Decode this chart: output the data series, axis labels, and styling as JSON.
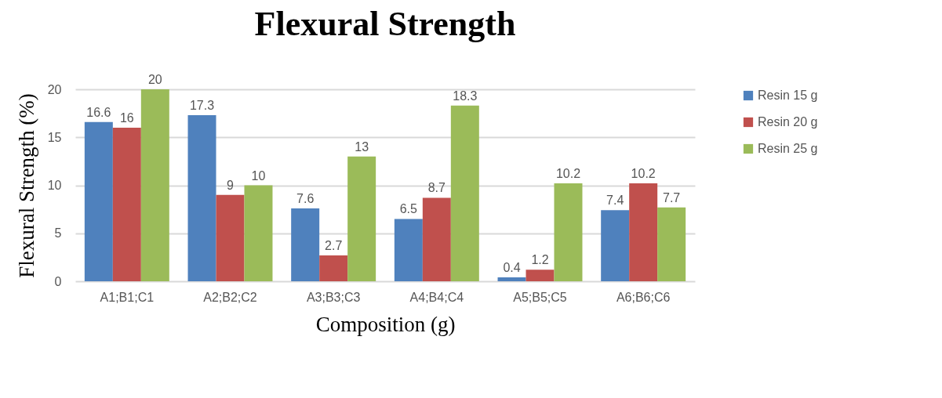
{
  "chart_data": {
    "type": "bar",
    "title": "Flexural Strength",
    "xlabel": "Composition (g)",
    "ylabel": "Flexural Strength (%)",
    "categories": [
      "A1;B1;C1",
      "A2;B2;C2",
      "A3;B3;C3",
      "A4;B4;C4",
      "A5;B5;C5",
      "A6;B6;C6"
    ],
    "series": [
      {
        "name": "Resin 15 g",
        "color": "#4f81bd",
        "values": [
          16.6,
          17.3,
          7.6,
          6.5,
          0.4,
          7.4
        ]
      },
      {
        "name": "Resin 20 g",
        "color": "#c0504d",
        "values": [
          16,
          9,
          2.7,
          8.7,
          1.2,
          10.2
        ]
      },
      {
        "name": "Resin 25 g",
        "color": "#9bbb59",
        "values": [
          20,
          10,
          13,
          18.3,
          10.2,
          7.7
        ]
      }
    ],
    "ylim": [
      0,
      20
    ],
    "yticks": [
      0,
      5,
      10,
      15,
      20
    ],
    "grid": "y",
    "legend": "right",
    "data_labels": true
  }
}
